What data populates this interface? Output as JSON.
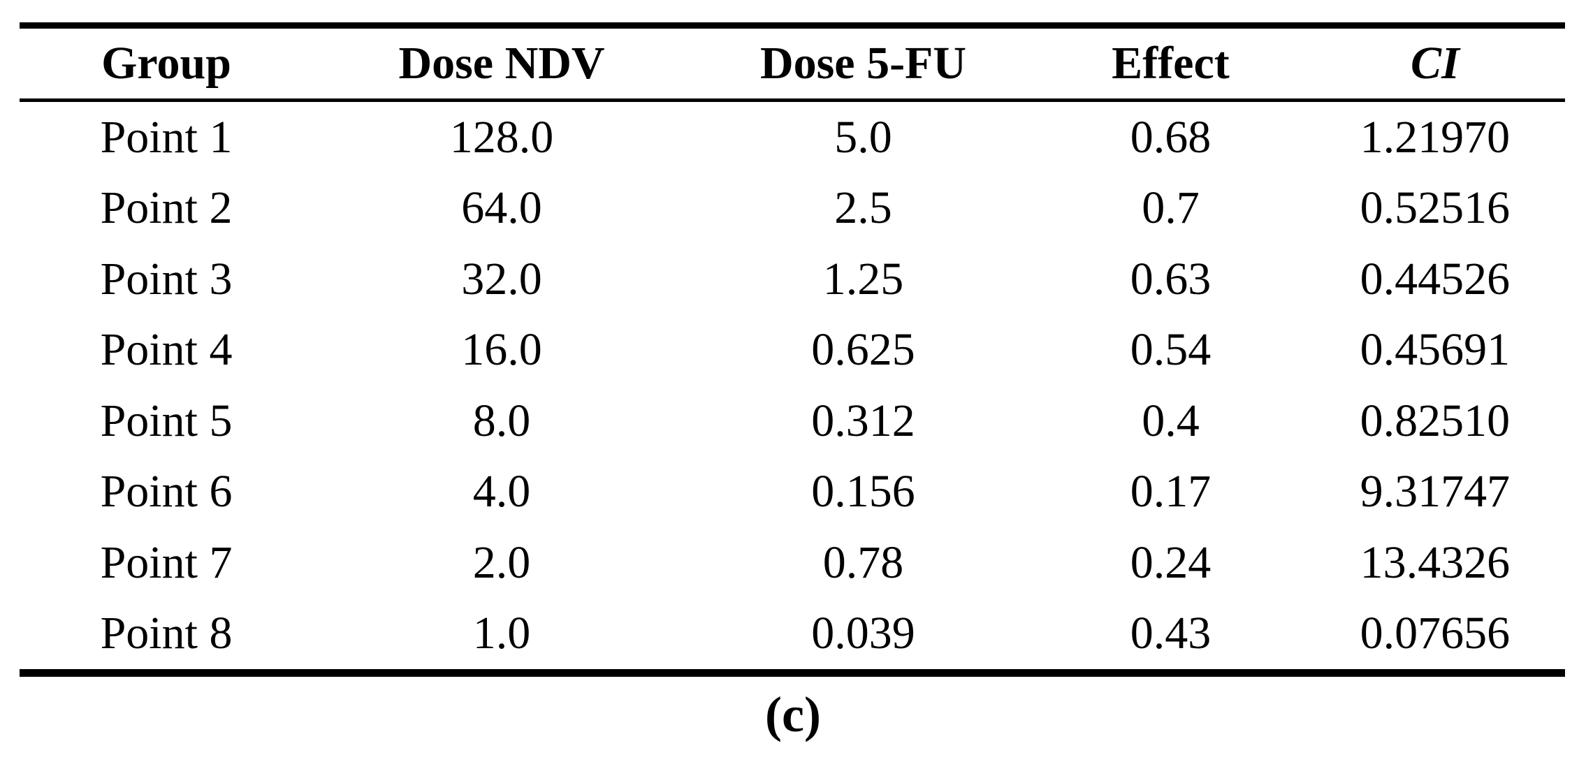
{
  "colors": {
    "text": "#000000",
    "background": "#ffffff",
    "rule": "#000000"
  },
  "caption": "(c)",
  "table": {
    "columns": [
      {
        "key": "group",
        "label": "Group"
      },
      {
        "key": "dose_ndv",
        "label": "Dose NDV"
      },
      {
        "key": "dose_5fu",
        "label": "Dose 5-FU"
      },
      {
        "key": "effect",
        "label": "Effect"
      },
      {
        "key": "ci",
        "label": "CI"
      }
    ],
    "rows": [
      {
        "group": "Point 1",
        "dose_ndv": "128.0",
        "dose_5fu": "5.0",
        "effect": "0.68",
        "ci": "1.21970"
      },
      {
        "group": "Point 2",
        "dose_ndv": "64.0",
        "dose_5fu": "2.5",
        "effect": "0.7",
        "ci": "0.52516"
      },
      {
        "group": "Point 3",
        "dose_ndv": "32.0",
        "dose_5fu": "1.25",
        "effect": "0.63",
        "ci": "0.44526"
      },
      {
        "group": "Point 4",
        "dose_ndv": "16.0",
        "dose_5fu": "0.625",
        "effect": "0.54",
        "ci": "0.45691"
      },
      {
        "group": "Point 5",
        "dose_ndv": "8.0",
        "dose_5fu": "0.312",
        "effect": "0.4",
        "ci": "0.82510"
      },
      {
        "group": "Point 6",
        "dose_ndv": "4.0",
        "dose_5fu": "0.156",
        "effect": "0.17",
        "ci": "9.31747"
      },
      {
        "group": "Point 7",
        "dose_ndv": "2.0",
        "dose_5fu": "0.78",
        "effect": "0.24",
        "ci": "13.4326"
      },
      {
        "group": "Point 8",
        "dose_ndv": "1.0",
        "dose_5fu": "0.039",
        "effect": "0.43",
        "ci": "0.07656"
      }
    ]
  },
  "chart_data": {
    "type": "table",
    "title": "(c)",
    "columns": [
      "Group",
      "Dose NDV",
      "Dose 5-FU",
      "Effect",
      "CI"
    ],
    "rows": [
      [
        "Point 1",
        128.0,
        5.0,
        0.68,
        1.2197
      ],
      [
        "Point 2",
        64.0,
        2.5,
        0.7,
        0.52516
      ],
      [
        "Point 3",
        32.0,
        1.25,
        0.63,
        0.44526
      ],
      [
        "Point 4",
        16.0,
        0.625,
        0.54,
        0.45691
      ],
      [
        "Point 5",
        8.0,
        0.312,
        0.4,
        0.8251
      ],
      [
        "Point 6",
        4.0,
        0.156,
        0.17,
        9.31747
      ],
      [
        "Point 7",
        2.0,
        0.78,
        0.24,
        13.4326
      ],
      [
        "Point 8",
        1.0,
        0.039,
        0.43,
        0.07656
      ]
    ]
  }
}
